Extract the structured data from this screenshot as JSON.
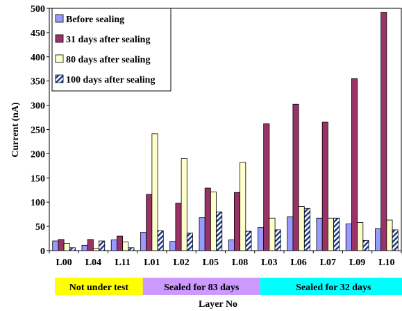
{
  "chart_data": {
    "type": "bar",
    "xlabel": "Layer No",
    "ylabel": "Current (nA)",
    "ylim": [
      0,
      500
    ],
    "yticks": [
      0,
      50,
      100,
      150,
      200,
      250,
      300,
      350,
      400,
      450,
      500
    ],
    "ytick_labels": [
      "0",
      "50",
      "100",
      "150",
      "200",
      "250",
      "300",
      "350",
      "400",
      "450",
      "500"
    ],
    "categories": [
      "L00",
      "L04",
      "L11",
      "L01",
      "L02",
      "L05",
      "L08",
      "L03",
      "L06",
      "L07",
      "L09",
      "L10"
    ],
    "legend_position": "top-left",
    "grid": false,
    "series": [
      {
        "name": "Before sealing",
        "color": "#9999ff",
        "pattern": "solid",
        "values": [
          20,
          11,
          22,
          38,
          19,
          68,
          22,
          48,
          70,
          67,
          55,
          45
        ]
      },
      {
        "name": "31 days after sealing",
        "color": "#993366",
        "pattern": "solid",
        "values": [
          23,
          23,
          30,
          116,
          98,
          129,
          120,
          262,
          302,
          265,
          355,
          492
        ]
      },
      {
        "name": "80 days after sealing",
        "color": "#ffffcc",
        "pattern": "solid",
        "values": [
          15,
          5,
          18,
          241,
          190,
          121,
          182,
          67,
          91,
          67,
          58,
          63
        ]
      },
      {
        "name": "100 days after sealing",
        "color": "#1f3a8a",
        "pattern": "diagonal-hatch",
        "values": [
          6,
          20,
          6,
          41,
          36,
          80,
          40,
          43,
          87,
          67,
          21,
          43
        ]
      }
    ],
    "groups": [
      {
        "label": "Not under test",
        "color": "#ffff00",
        "categories": [
          "L00",
          "L04",
          "L11"
        ]
      },
      {
        "label": "Sealed for 83 days",
        "color": "#cc99ff",
        "categories": [
          "L01",
          "L02",
          "L05",
          "L08"
        ]
      },
      {
        "label": "Sealed for 32 days",
        "color": "#00ffff",
        "categories": [
          "L03",
          "L06",
          "L07",
          "L09",
          "L10"
        ]
      }
    ]
  }
}
